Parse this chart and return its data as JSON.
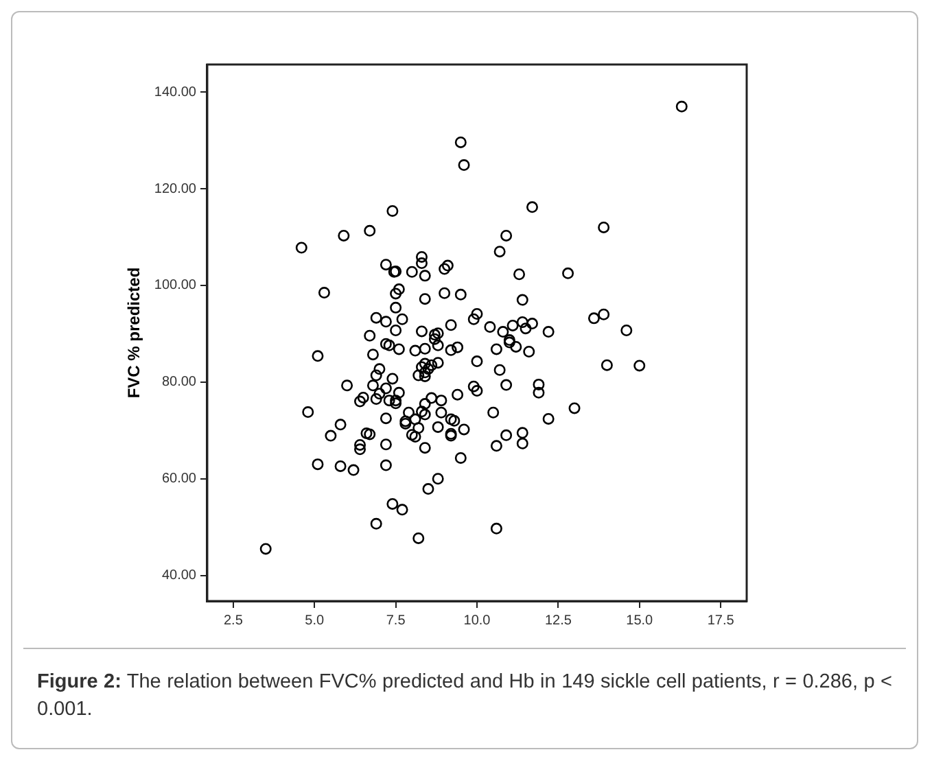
{
  "chart_data": {
    "type": "scatter",
    "ylabel": "FVC % predicted",
    "marker": "circle",
    "grid": false,
    "legend": false,
    "xlim": [
      1.7,
      18.3
    ],
    "ylim": [
      34.7,
      145.7
    ],
    "xticks": [
      2.5,
      {
        "value": 5,
        "label": "5.0"
      },
      7.5,
      {
        "value": 10,
        "label": "10.0"
      },
      12.5,
      {
        "value": 15,
        "label": "15.0"
      },
      17.5
    ],
    "yticks": [
      {
        "value": 40,
        "label": "40.00"
      },
      {
        "value": 60,
        "label": "60.00"
      },
      {
        "value": 80,
        "label": "80.00"
      },
      {
        "value": 100,
        "label": "100.00"
      },
      {
        "value": 120,
        "label": "120.00"
      },
      {
        "value": 140,
        "label": "140.00"
      }
    ],
    "annotations": [
      "Figure 2: The relation between FVC% predicted and Hb in 149 sickle cell patients, r = 0.286, p < 0.001."
    ],
    "series": [
      {
        "color": "#000000",
        "x": [
          16.3,
          9.5,
          9.6,
          11.7,
          13.9,
          10.9,
          10.7,
          11.3,
          12.8,
          9.0,
          9.1,
          8.3,
          8.3,
          8.4,
          8.4,
          9.0,
          9.5,
          11.4,
          10.0,
          9.9,
          9.2,
          8.7,
          8.8,
          10.4,
          10.8,
          11.1,
          11.4,
          11.7,
          11.5,
          12.2,
          13.6,
          13.9,
          14.6,
          8.7,
          8.4,
          8.8,
          9.2,
          9.4,
          10.6,
          11.0,
          11.0,
          11.2,
          11.6,
          10.0,
          8.4,
          8.6,
          8.8,
          8.4,
          8.5,
          10.7,
          10.9,
          9.9,
          10.0,
          11.9,
          11.9,
          14.0,
          15.0,
          9.4,
          8.6,
          8.9,
          8.9,
          10.5,
          13.0,
          12.2,
          9.2,
          9.3,
          8.8,
          9.6,
          9.2,
          9.2,
          10.9,
          11.4,
          11.4,
          10.6,
          8.4,
          9.5,
          8.8,
          8.5,
          10.6,
          4.6,
          5.9,
          6.7,
          7.4,
          5.3,
          7.2,
          7.45,
          7.5,
          8.0,
          7.6,
          7.5,
          7.5,
          6.9,
          7.2,
          7.7,
          7.5,
          6.7,
          8.3,
          5.1,
          6.8,
          7.2,
          7.3,
          7.6,
          8.1,
          8.3,
          8.2,
          8.4,
          6.9,
          7.0,
          6.0,
          6.8,
          7.2,
          7.4,
          7.6,
          7.0,
          6.9,
          6.5,
          6.4,
          7.3,
          7.5,
          7.5,
          8.4,
          4.8,
          5.8,
          5.5,
          6.4,
          6.4,
          6.6,
          6.7,
          7.2,
          7.2,
          5.1,
          5.8,
          6.2,
          7.2,
          7.9,
          7.8,
          7.8,
          8.1,
          8.3,
          8.4,
          8.2,
          8.0,
          8.1,
          7.4,
          7.7,
          6.9,
          8.2,
          3.5
        ],
        "values": [
          137.0,
          129.6,
          124.9,
          116.2,
          112.0,
          110.3,
          107.0,
          102.3,
          102.5,
          103.4,
          104.1,
          105.9,
          104.6,
          102.0,
          97.2,
          98.4,
          98.1,
          97.0,
          94.1,
          93.0,
          91.8,
          89.8,
          90.1,
          91.4,
          90.4,
          91.7,
          92.4,
          92.1,
          91.1,
          90.4,
          93.2,
          94.0,
          90.7,
          88.9,
          86.9,
          87.6,
          86.6,
          87.2,
          86.8,
          88.7,
          88.2,
          87.3,
          86.3,
          84.3,
          83.8,
          83.5,
          84.0,
          82.0,
          82.7,
          82.5,
          79.4,
          79.1,
          78.2,
          79.5,
          77.8,
          83.5,
          83.4,
          77.4,
          76.7,
          76.2,
          73.7,
          73.7,
          74.6,
          72.4,
          72.3,
          72.0,
          70.7,
          70.2,
          69.3,
          68.9,
          69.0,
          69.5,
          67.3,
          66.8,
          66.4,
          64.3,
          60.0,
          57.9,
          49.7,
          107.8,
          110.3,
          111.3,
          115.4,
          98.5,
          104.3,
          102.8,
          102.9,
          102.8,
          99.2,
          98.3,
          95.4,
          93.3,
          92.5,
          93.0,
          90.7,
          89.6,
          90.5,
          85.4,
          85.7,
          87.9,
          87.6,
          86.8,
          86.5,
          83.1,
          81.4,
          81.2,
          81.4,
          82.7,
          79.3,
          79.3,
          78.7,
          80.7,
          77.8,
          77.6,
          76.5,
          76.8,
          76.0,
          76.2,
          75.6,
          76.2,
          75.5,
          73.8,
          71.2,
          68.9,
          67.0,
          66.1,
          69.4,
          69.2,
          72.5,
          67.1,
          63.0,
          62.6,
          61.8,
          62.8,
          73.7,
          71.9,
          71.4,
          72.3,
          73.9,
          73.3,
          70.5,
          69.1,
          68.7,
          54.8,
          53.6,
          50.7,
          47.7,
          45.5
        ]
      }
    ]
  }
}
